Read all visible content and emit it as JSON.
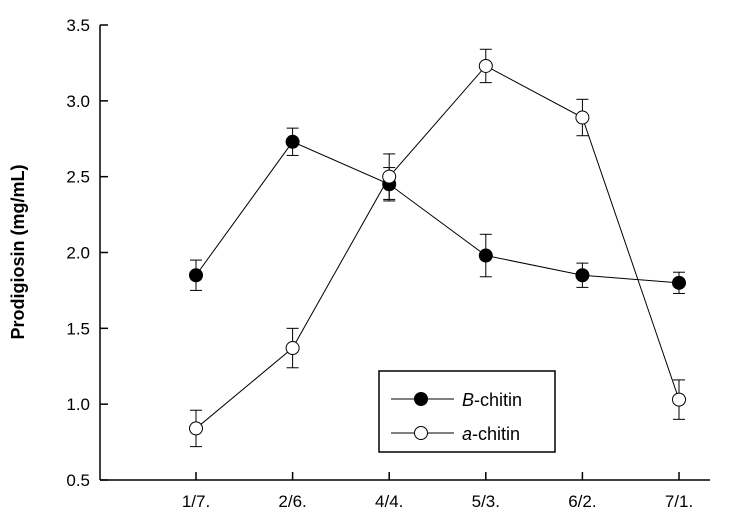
{
  "chart_data": {
    "type": "line",
    "title": "",
    "xlabel": "",
    "ylabel": "Prodigiosin (mg/mL)",
    "categories": [
      "1/7.",
      "2/6.",
      "4/4.",
      "5/3.",
      "6/2.",
      "7/1."
    ],
    "ylim": [
      0.5,
      3.5
    ],
    "yticks": [
      "0.5",
      "1.0",
      "1.5",
      "2.0",
      "2.5",
      "3.0",
      "3.5"
    ],
    "grid": false,
    "legend_position": "bottom-center",
    "series": [
      {
        "name_prefix": "B",
        "name_suffix": "-chitin",
        "marker": "filled-circle",
        "values": [
          1.85,
          2.73,
          2.45,
          1.98,
          1.85,
          1.8
        ],
        "errors": [
          0.1,
          0.09,
          0.11,
          0.14,
          0.08,
          0.07
        ]
      },
      {
        "name_prefix": "a",
        "name_suffix": "-chitin",
        "marker": "open-circle",
        "values": [
          0.84,
          1.37,
          2.5,
          3.23,
          2.89,
          1.03
        ],
        "errors": [
          0.12,
          0.13,
          0.15,
          0.11,
          0.12,
          0.13
        ]
      }
    ]
  }
}
